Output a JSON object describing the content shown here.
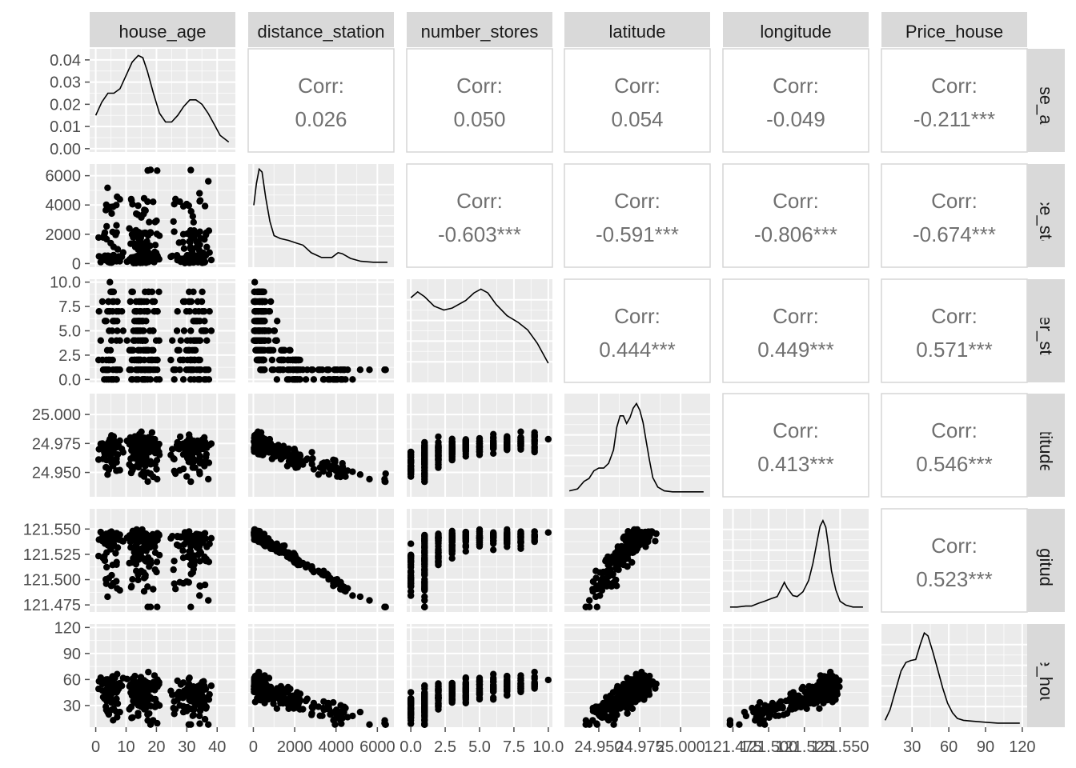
{
  "chart_data": {
    "type": "scatter-matrix",
    "variables": [
      "house_age",
      "distance_station",
      "number_stores",
      "latitude",
      "longitude",
      "Price_house"
    ],
    "row_strip_labels": [
      "house_age",
      "stance_statio",
      "umber_store",
      "latitude",
      "longitude",
      "Price_house"
    ],
    "corr_label": "Corr:",
    "correlations": [
      {
        "row": 0,
        "col": 1,
        "value": "0.026"
      },
      {
        "row": 0,
        "col": 2,
        "value": "0.050"
      },
      {
        "row": 0,
        "col": 3,
        "value": "0.054"
      },
      {
        "row": 0,
        "col": 4,
        "value": "-0.049"
      },
      {
        "row": 0,
        "col": 5,
        "value": "-0.211***"
      },
      {
        "row": 1,
        "col": 2,
        "value": "-0.603***"
      },
      {
        "row": 1,
        "col": 3,
        "value": "-0.591***"
      },
      {
        "row": 1,
        "col": 4,
        "value": "-0.806***"
      },
      {
        "row": 1,
        "col": 5,
        "value": "-0.674***"
      },
      {
        "row": 2,
        "col": 3,
        "value": "0.444***"
      },
      {
        "row": 2,
        "col": 4,
        "value": "0.449***"
      },
      {
        "row": 2,
        "col": 5,
        "value": "0.571***"
      },
      {
        "row": 3,
        "col": 4,
        "value": "0.413***"
      },
      {
        "row": 3,
        "col": 5,
        "value": "0.546***"
      },
      {
        "row": 4,
        "col": 5,
        "value": "0.523***"
      }
    ],
    "axes": {
      "house_age": {
        "range": [
          -2,
          46
        ],
        "ticks": [
          0,
          10,
          20,
          30,
          40
        ],
        "tick_labels": [
          "0",
          "10",
          "20",
          "30",
          "40"
        ]
      },
      "distance_station": {
        "range": [
          -250,
          6800
        ],
        "ticks": [
          0,
          2000,
          4000,
          6000
        ],
        "tick_labels": [
          "0",
          "2000",
          "4000",
          "6000"
        ]
      },
      "number_stores": {
        "range": [
          -0.3,
          10.3
        ],
        "ticks": [
          0,
          2.5,
          5,
          7.5,
          10
        ],
        "tick_labels": [
          "0.0",
          "2.5",
          "5.0",
          "7.5",
          "10.0"
        ]
      },
      "latitude": {
        "range": [
          24.929,
          25.018
        ],
        "ticks": [
          24.95,
          24.975,
          25.0
        ],
        "tick_labels": [
          "24.950",
          "24.975",
          "25.000"
        ]
      },
      "longitude": {
        "range": [
          121.468,
          121.57
        ],
        "ticks": [
          121.475,
          121.5,
          121.525,
          121.55
        ],
        "tick_labels": [
          "121.475",
          "121.500",
          "121.525",
          "121.550"
        ]
      },
      "Price_house": {
        "range": [
          5,
          124
        ],
        "ticks": [
          30,
          60,
          90,
          120
        ],
        "tick_labels": [
          "30",
          "60",
          "90",
          "120"
        ]
      }
    },
    "density_axis": {
      "range": [
        -0.0015,
        0.045
      ],
      "ticks": [
        0,
        0.01,
        0.02,
        0.03,
        0.04
      ],
      "tick_labels": [
        "0.00",
        "0.01",
        "0.02",
        "0.03",
        "0.04"
      ]
    },
    "densities": {
      "house_age": [
        [
          0,
          0.015
        ],
        [
          2,
          0.021
        ],
        [
          4,
          0.025
        ],
        [
          6,
          0.025
        ],
        [
          8,
          0.027
        ],
        [
          10,
          0.033
        ],
        [
          12,
          0.039
        ],
        [
          14,
          0.042
        ],
        [
          15.5,
          0.041
        ],
        [
          17,
          0.035
        ],
        [
          19,
          0.025
        ],
        [
          21,
          0.016
        ],
        [
          23,
          0.012
        ],
        [
          25,
          0.012
        ],
        [
          27,
          0.015
        ],
        [
          29,
          0.019
        ],
        [
          31,
          0.022
        ],
        [
          33,
          0.022
        ],
        [
          35,
          0.02
        ],
        [
          37,
          0.016
        ],
        [
          39,
          0.011
        ],
        [
          41,
          0.006
        ],
        [
          43.8,
          0.003
        ]
      ],
      "distance_station": [
        [
          23,
          0.62
        ],
        [
          150,
          0.85
        ],
        [
          280,
          1.0
        ],
        [
          420,
          0.97
        ],
        [
          600,
          0.7
        ],
        [
          800,
          0.45
        ],
        [
          1000,
          0.3
        ],
        [
          1300,
          0.27
        ],
        [
          1700,
          0.25
        ],
        [
          2100,
          0.22
        ],
        [
          2400,
          0.2
        ],
        [
          2800,
          0.12
        ],
        [
          3300,
          0.07
        ],
        [
          3800,
          0.07
        ],
        [
          4100,
          0.12
        ],
        [
          4300,
          0.11
        ],
        [
          4700,
          0.06
        ],
        [
          5200,
          0.03
        ],
        [
          5800,
          0.02
        ],
        [
          6300,
          0.02
        ],
        [
          6490,
          0.02
        ]
      ],
      "number_stores": [
        [
          0,
          0.86
        ],
        [
          0.5,
          0.92
        ],
        [
          1,
          0.87
        ],
        [
          1.7,
          0.77
        ],
        [
          2.4,
          0.73
        ],
        [
          3,
          0.75
        ],
        [
          4,
          0.83
        ],
        [
          4.6,
          0.91
        ],
        [
          5.1,
          0.95
        ],
        [
          5.6,
          0.91
        ],
        [
          6.2,
          0.79
        ],
        [
          7,
          0.67
        ],
        [
          7.8,
          0.6
        ],
        [
          8.5,
          0.52
        ],
        [
          9.2,
          0.38
        ],
        [
          10,
          0.17
        ]
      ],
      "latitude": [
        [
          24.932,
          0.03
        ],
        [
          24.937,
          0.05
        ],
        [
          24.941,
          0.13
        ],
        [
          24.944,
          0.16
        ],
        [
          24.947,
          0.24
        ],
        [
          24.95,
          0.27
        ],
        [
          24.953,
          0.27
        ],
        [
          24.956,
          0.32
        ],
        [
          24.959,
          0.46
        ],
        [
          24.961,
          0.7
        ],
        [
          24.963,
          0.82
        ],
        [
          24.965,
          0.82
        ],
        [
          24.967,
          0.74
        ],
        [
          24.969,
          0.8
        ],
        [
          24.971,
          0.9
        ],
        [
          24.973,
          0.95
        ],
        [
          24.975,
          0.88
        ],
        [
          24.977,
          0.75
        ],
        [
          24.979,
          0.55
        ],
        [
          24.981,
          0.35
        ],
        [
          24.983,
          0.17
        ],
        [
          24.986,
          0.07
        ],
        [
          24.99,
          0.03
        ],
        [
          24.995,
          0.02
        ],
        [
          25.0,
          0.02
        ],
        [
          25.006,
          0.02
        ],
        [
          25.014,
          0.02
        ]
      ],
      "longitude": [
        [
          121.473,
          0.02
        ],
        [
          121.478,
          0.02
        ],
        [
          121.484,
          0.03
        ],
        [
          121.488,
          0.03
        ],
        [
          121.493,
          0.06
        ],
        [
          121.497,
          0.08
        ],
        [
          121.502,
          0.11
        ],
        [
          121.506,
          0.13
        ],
        [
          121.509,
          0.22
        ],
        [
          121.511,
          0.28
        ],
        [
          121.513,
          0.22
        ],
        [
          121.517,
          0.14
        ],
        [
          121.52,
          0.13
        ],
        [
          121.524,
          0.18
        ],
        [
          121.528,
          0.3
        ],
        [
          121.531,
          0.48
        ],
        [
          121.534,
          0.72
        ],
        [
          121.536,
          0.87
        ],
        [
          121.538,
          0.93
        ],
        [
          121.54,
          0.86
        ],
        [
          121.542,
          0.65
        ],
        [
          121.544,
          0.4
        ],
        [
          121.547,
          0.2
        ],
        [
          121.55,
          0.08
        ],
        [
          121.554,
          0.04
        ],
        [
          121.559,
          0.02
        ],
        [
          121.566,
          0.02
        ]
      ],
      "Price_house": [
        [
          8,
          0.04
        ],
        [
          12,
          0.15
        ],
        [
          17,
          0.38
        ],
        [
          21,
          0.56
        ],
        [
          25,
          0.65
        ],
        [
          29,
          0.67
        ],
        [
          33,
          0.68
        ],
        [
          37,
          0.85
        ],
        [
          40,
          0.96
        ],
        [
          43,
          0.93
        ],
        [
          47,
          0.76
        ],
        [
          51,
          0.57
        ],
        [
          55,
          0.38
        ],
        [
          59,
          0.22
        ],
        [
          63,
          0.12
        ],
        [
          67,
          0.06
        ],
        [
          72,
          0.04
        ],
        [
          80,
          0.03
        ],
        [
          90,
          0.02
        ],
        [
          100,
          0.01
        ],
        [
          110,
          0.01
        ],
        [
          118,
          0.01
        ]
      ]
    },
    "grid": true,
    "background": "#ebebeb"
  }
}
